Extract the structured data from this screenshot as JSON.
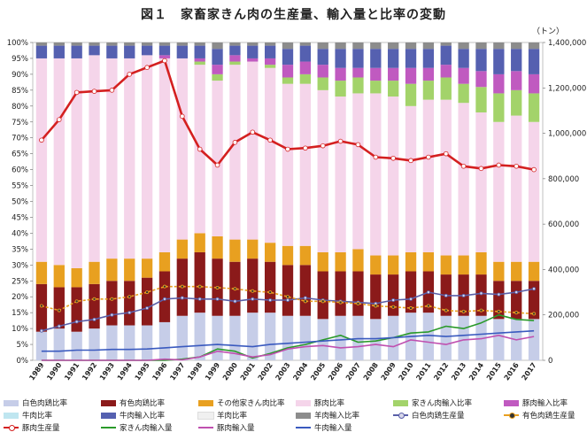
{
  "chart_data": {
    "type": "bar",
    "title": "図１　家畜家きん肉の生産量、輸入量と比率の変動",
    "unit_label": "（トン）",
    "categories": [
      "1989",
      "1990",
      "1991",
      "1992",
      "1993",
      "1994",
      "1995",
      "1996",
      "1997",
      "1998",
      "1999",
      "2000",
      "2001",
      "2002",
      "2003",
      "2004",
      "2005",
      "2006",
      "2007",
      "2008",
      "2009",
      "2010",
      "2011",
      "2012",
      "2013",
      "2014",
      "2015",
      "2016",
      "2017"
    ],
    "left_axis": {
      "ylim": [
        0,
        100
      ],
      "step": 5,
      "format": "percent"
    },
    "right_axis": {
      "ylim": [
        0,
        1400000
      ],
      "step": 200000,
      "format": "thousands"
    },
    "stacked_series": [
      {
        "name": "白色肉鶏比率",
        "color": "#c6cde8",
        "values": [
          9,
          10,
          9,
          10,
          11,
          11,
          11,
          12,
          14,
          15,
          14,
          14,
          15,
          15,
          14,
          14,
          13,
          14,
          14,
          13,
          14,
          15,
          15,
          14,
          14,
          14,
          13,
          13,
          13
        ]
      },
      {
        "name": "有色肉鶏比率",
        "color": "#8b1a1a",
        "values": [
          15,
          13,
          14,
          14,
          14,
          14,
          15,
          16,
          18,
          19,
          18,
          17,
          17,
          16,
          16,
          16,
          15,
          14,
          14,
          14,
          13,
          13,
          13,
          13,
          13,
          13,
          12,
          12,
          12
        ]
      },
      {
        "name": "その他家きん肉比率",
        "color": "#e8a020",
        "values": [
          7,
          7,
          6,
          7,
          7,
          7,
          6,
          6,
          6,
          6,
          7,
          7,
          6,
          6,
          6,
          6,
          6,
          6,
          7,
          6,
          6,
          6,
          6,
          6,
          6,
          7,
          6,
          6,
          6
        ]
      },
      {
        "name": "豚肉比率",
        "color": "#f5d5ea",
        "values": [
          64,
          65,
          66,
          65,
          63,
          63,
          64,
          61,
          57,
          53,
          49,
          55,
          56,
          55,
          51,
          51,
          51,
          49,
          49,
          51,
          50,
          46,
          48,
          49,
          48,
          44,
          44,
          46,
          44
        ]
      },
      {
        "name": "家きん肉輸入比率",
        "color": "#a3d36a",
        "values": [
          0,
          0,
          0,
          0,
          0,
          0,
          0,
          0,
          0,
          1,
          2,
          1,
          0,
          1,
          2,
          3,
          4,
          5,
          5,
          4,
          5,
          7,
          6,
          7,
          6,
          8,
          9,
          8,
          9
        ]
      },
      {
        "name": "豚肉輸入比率",
        "color": "#c05ac0",
        "values": [
          0,
          0,
          0,
          0,
          0,
          0,
          0,
          1,
          0,
          1,
          3,
          2,
          1,
          2,
          4,
          4,
          4,
          4,
          3,
          4,
          4,
          5,
          4,
          4,
          5,
          5,
          6,
          6,
          6
        ]
      },
      {
        "name": "牛肉比率",
        "color": "#bfe6f0",
        "values": [
          0,
          0,
          0,
          0,
          0,
          0,
          0,
          0,
          0,
          0,
          0,
          0,
          0,
          0,
          0,
          0,
          0,
          0,
          0,
          0,
          0,
          0,
          0,
          0,
          0,
          0,
          0,
          0,
          0
        ]
      },
      {
        "name": "牛肉輸入比率",
        "color": "#5560b0",
        "values": [
          4,
          4,
          4,
          3,
          4,
          4,
          3,
          3,
          4,
          4,
          5,
          3,
          4,
          4,
          5,
          5,
          5,
          6,
          6,
          6,
          6,
          6,
          6,
          6,
          6,
          7,
          8,
          7,
          8
        ]
      },
      {
        "name": "羊肉比率",
        "color": "#f0f0f0",
        "values": [
          0,
          0,
          0,
          0,
          0,
          0,
          0,
          0,
          0,
          0,
          0,
          0,
          0,
          0,
          0,
          0,
          0,
          0,
          0,
          0,
          0,
          0,
          0,
          0,
          0,
          0,
          0,
          0,
          0
        ]
      },
      {
        "name": "羊肉輸入比率",
        "color": "#8c8c8c",
        "values": [
          1,
          1,
          1,
          1,
          1,
          1,
          1,
          1,
          1,
          1,
          2,
          1,
          1,
          1,
          2,
          1,
          2,
          2,
          2,
          2,
          2,
          2,
          2,
          1,
          2,
          2,
          2,
          2,
          2
        ]
      }
    ],
    "line_series": [
      {
        "name": "白色肉鶏生産量",
        "color": "#5a5fa8",
        "marker": "#d8d8ea",
        "width": 1.6,
        "values": [
          130000,
          150000,
          170000,
          180000,
          200000,
          210000,
          230000,
          270000,
          275000,
          270000,
          270000,
          260000,
          270000,
          265000,
          265000,
          275000,
          265000,
          260000,
          255000,
          250000,
          265000,
          270000,
          300000,
          285000,
          285000,
          295000,
          290000,
          300000,
          315000
        ]
      },
      {
        "name": "有色肉鶏生産量",
        "color": "#e8a020",
        "marker": "#333333",
        "dash": "3,2",
        "width": 1.6,
        "values": [
          240000,
          220000,
          260000,
          270000,
          270000,
          280000,
          300000,
          325000,
          325000,
          325000,
          320000,
          315000,
          305000,
          300000,
          280000,
          260000,
          260000,
          255000,
          250000,
          240000,
          235000,
          230000,
          240000,
          220000,
          215000,
          220000,
          215000,
          210000,
          205000
        ]
      },
      {
        "name": "豚肉生産量",
        "color": "#d42020",
        "marker": "#ffffff",
        "width": 2.6,
        "values": [
          970000,
          1060000,
          1180000,
          1185000,
          1190000,
          1260000,
          1290000,
          1320000,
          1075000,
          930000,
          860000,
          960000,
          1005000,
          970000,
          930000,
          935000,
          945000,
          965000,
          950000,
          895000,
          890000,
          880000,
          895000,
          910000,
          855000,
          845000,
          860000,
          855000,
          840000
        ]
      },
      {
        "name": "家きん肉輸入量",
        "color": "#2a9a2a",
        "width": 1.6,
        "values": [
          0,
          0,
          0,
          0,
          0,
          0,
          0,
          0,
          5000,
          15000,
          50000,
          40000,
          10000,
          30000,
          55000,
          70000,
          90000,
          110000,
          80000,
          85000,
          100000,
          120000,
          125000,
          150000,
          140000,
          165000,
          200000,
          180000,
          175000
        ]
      },
      {
        "name": "豚肉輸入量",
        "color": "#c050b0",
        "width": 1.6,
        "values": [
          0,
          0,
          0,
          0,
          0,
          0,
          0,
          5000,
          2000,
          15000,
          40000,
          30000,
          15000,
          25000,
          50000,
          60000,
          65000,
          55000,
          60000,
          70000,
          60000,
          90000,
          80000,
          70000,
          90000,
          95000,
          110000,
          90000,
          105000
        ]
      },
      {
        "name": "牛肉輸入量",
        "color": "#3a5abf",
        "width": 1.6,
        "values": [
          40000,
          40000,
          45000,
          45000,
          48000,
          48000,
          50000,
          55000,
          60000,
          65000,
          70000,
          65000,
          60000,
          70000,
          75000,
          80000,
          85000,
          90000,
          95000,
          95000,
          100000,
          105000,
          110000,
          105000,
          110000,
          115000,
          120000,
          125000,
          130000
        ]
      }
    ],
    "legend": [
      [
        {
          "label": "白色肉鶏比率",
          "kind": "box",
          "color": "#c6cde8"
        },
        {
          "label": "有色肉鶏比率",
          "kind": "box",
          "color": "#8b1a1a"
        },
        {
          "label": "その他家きん肉比率",
          "kind": "box",
          "color": "#e8a020"
        },
        {
          "label": "豚肉比率",
          "kind": "box",
          "color": "#f5d5ea"
        },
        {
          "label": "家きん肉輸入比率",
          "kind": "box",
          "color": "#a3d36a"
        },
        {
          "label": "豚肉輸入比率",
          "kind": "box",
          "color": "#c05ac0"
        }
      ],
      [
        {
          "label": "牛肉比率",
          "kind": "box",
          "color": "#bfe6f0"
        },
        {
          "label": "牛肉輸入比率",
          "kind": "box",
          "color": "#5560b0"
        },
        {
          "label": "羊肉比率",
          "kind": "box",
          "color": "#f0f0f0"
        },
        {
          "label": "羊肉輸入比率",
          "kind": "box",
          "color": "#8c8c8c"
        },
        {
          "label": "白色肉鶏生産量",
          "kind": "line",
          "color": "#5a5fa8",
          "marker": "#d8d8ea"
        },
        {
          "label": "有色肉鶏生産量",
          "kind": "line",
          "color": "#e8a020",
          "marker": "#333333"
        }
      ],
      [
        {
          "label": "豚肉生産量",
          "kind": "line",
          "color": "#d42020",
          "marker": "#ffffff"
        },
        {
          "label": "家きん肉輸入量",
          "kind": "line",
          "color": "#2a9a2a"
        },
        {
          "label": "豚肉輸入量",
          "kind": "line",
          "color": "#c050b0"
        },
        {
          "label": "牛肉輸入量",
          "kind": "line",
          "color": "#3a5abf"
        }
      ]
    ]
  }
}
